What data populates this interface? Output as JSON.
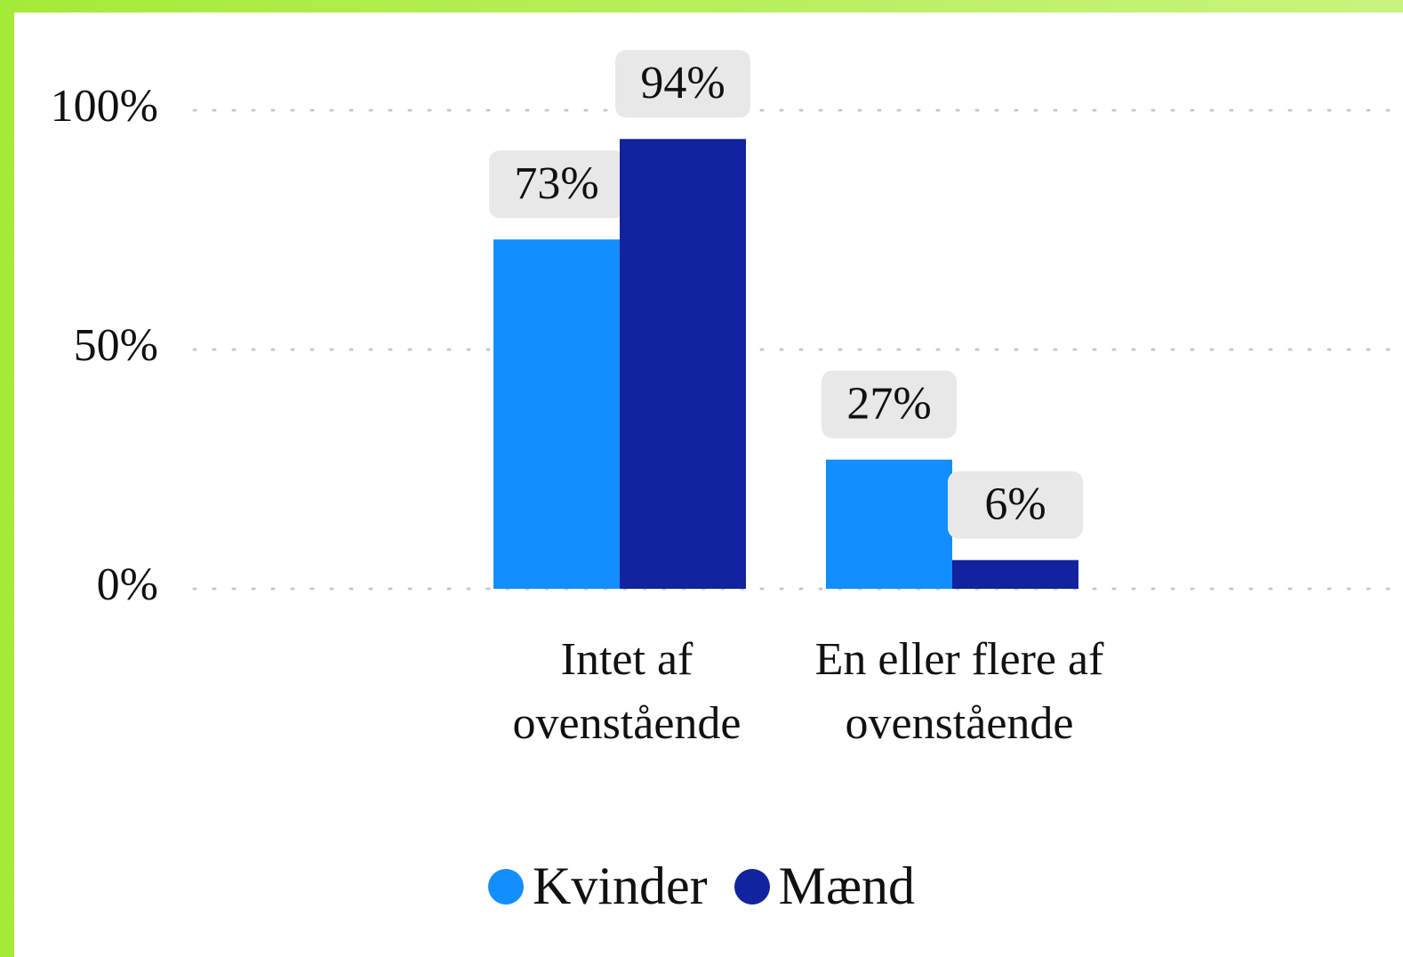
{
  "chart_data": {
    "type": "bar",
    "categories": [
      "Intet af ovenstående",
      "En eller flere af ovenstående"
    ],
    "series": [
      {
        "name": "Kvinder",
        "color": "#138eff",
        "values": [
          73,
          27
        ],
        "value_labels": [
          "73%",
          "27%"
        ]
      },
      {
        "name": "Mænd",
        "color": "#12239e",
        "values": [
          94,
          6
        ],
        "value_labels": [
          "94%",
          "6%"
        ]
      }
    ],
    "ylim": [
      0,
      100
    ],
    "yticks": [
      {
        "value": 0,
        "label": "0%"
      },
      {
        "value": 50,
        "label": "50%"
      },
      {
        "value": 100,
        "label": "100%"
      }
    ],
    "grid": true,
    "legend": "bottom"
  }
}
